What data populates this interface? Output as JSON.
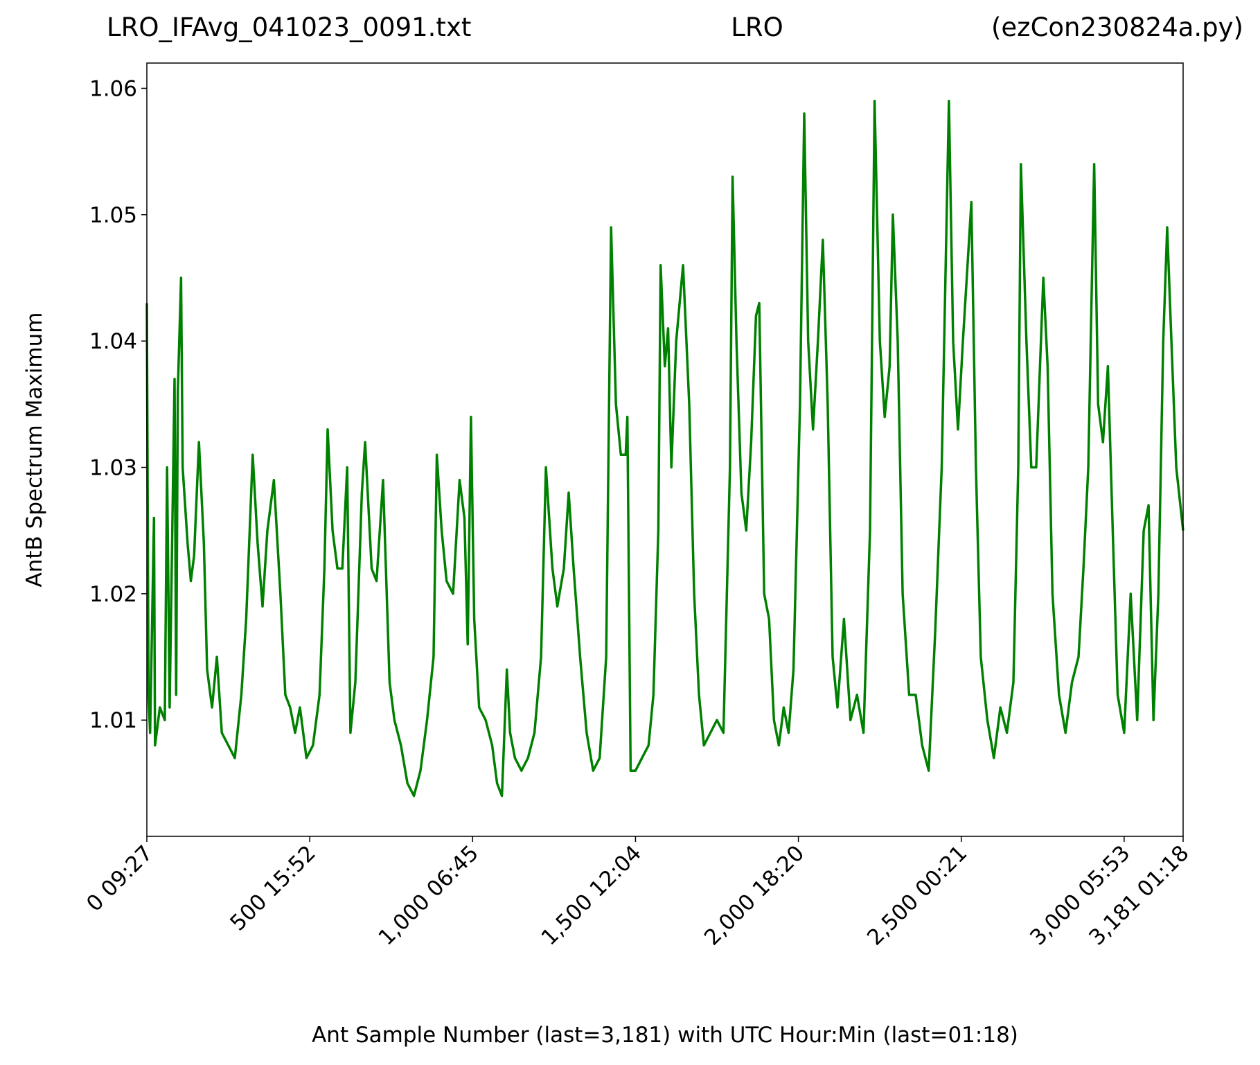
{
  "chart_data": {
    "type": "line",
    "title_left": "LRO_IFAvg_041023_0091.txt",
    "title_center": "LRO",
    "title_right": "(ezCon230824a.py)",
    "xlabel": "Ant Sample Number (last=3,181) with UTC Hour:Min (last=01:18)",
    "ylabel": "AntB Spectrum Maximum",
    "xlim": [
      0,
      3181
    ],
    "ylim": [
      1.0008,
      1.062
    ],
    "xticks": [
      {
        "value": 0,
        "label": "0  09:27"
      },
      {
        "value": 500,
        "label": "500  15:52"
      },
      {
        "value": 1000,
        "label": "1,000  06:45"
      },
      {
        "value": 1500,
        "label": "1,500  12:04"
      },
      {
        "value": 2000,
        "label": "2,000  18:20"
      },
      {
        "value": 2500,
        "label": "2,500  00:21"
      },
      {
        "value": 3000,
        "label": "3,000  05:53"
      },
      {
        "value": 3181,
        "label": "3,181  01:18"
      }
    ],
    "yticks": [
      1.01,
      1.02,
      1.03,
      1.04,
      1.05,
      1.06
    ],
    "series": [
      {
        "name": "AntB",
        "color": "#008000",
        "x": [
          0,
          5,
          10,
          22,
          25,
          40,
          55,
          62,
          70,
          85,
          90,
          95,
          105,
          110,
          125,
          135,
          145,
          160,
          175,
          185,
          200,
          215,
          230,
          250,
          270,
          290,
          305,
          325,
          340,
          355,
          370,
          390,
          410,
          425,
          440,
          455,
          470,
          490,
          510,
          530,
          545,
          555,
          570,
          585,
          600,
          615,
          625,
          640,
          660,
          670,
          690,
          705,
          725,
          745,
          760,
          780,
          800,
          820,
          840,
          860,
          880,
          890,
          905,
          920,
          940,
          960,
          975,
          985,
          995,
          1005,
          1020,
          1040,
          1060,
          1075,
          1090,
          1105,
          1115,
          1130,
          1150,
          1170,
          1190,
          1210,
          1225,
          1245,
          1260,
          1280,
          1295,
          1310,
          1330,
          1350,
          1370,
          1390,
          1410,
          1425,
          1440,
          1455,
          1470,
          1475,
          1485,
          1500,
          1520,
          1540,
          1555,
          1570,
          1577,
          1590,
          1600,
          1610,
          1625,
          1646,
          1665,
          1680,
          1695,
          1710,
          1730,
          1750,
          1770,
          1790,
          1798,
          1810,
          1825,
          1840,
          1855,
          1870,
          1880,
          1895,
          1910,
          1925,
          1940,
          1955,
          1970,
          1985,
          2005,
          2018,
          2030,
          2045,
          2060,
          2075,
          2090,
          2105,
          2120,
          2140,
          2160,
          2180,
          2200,
          2220,
          2234,
          2250,
          2265,
          2280,
          2290,
          2305,
          2320,
          2340,
          2360,
          2380,
          2400,
          2420,
          2440,
          2462,
          2475,
          2490,
          2505,
          2531,
          2545,
          2560,
          2580,
          2600,
          2620,
          2640,
          2660,
          2675,
          2683,
          2700,
          2715,
          2730,
          2752,
          2765,
          2780,
          2800,
          2820,
          2840,
          2860,
          2875,
          2890,
          2908,
          2920,
          2935,
          2950,
          2965,
          2980,
          3000,
          3020,
          3040,
          3060,
          3075,
          3090,
          3105,
          3120,
          3132,
          3145,
          3160,
          3181
        ],
        "values": [
          1.043,
          1.012,
          1.009,
          1.026,
          1.008,
          1.011,
          1.01,
          1.03,
          1.011,
          1.037,
          1.012,
          1.036,
          1.045,
          1.03,
          1.024,
          1.021,
          1.023,
          1.032,
          1.024,
          1.014,
          1.011,
          1.015,
          1.009,
          1.008,
          1.007,
          1.012,
          1.018,
          1.031,
          1.024,
          1.019,
          1.025,
          1.029,
          1.02,
          1.012,
          1.011,
          1.009,
          1.011,
          1.007,
          1.008,
          1.012,
          1.022,
          1.033,
          1.025,
          1.022,
          1.022,
          1.03,
          1.009,
          1.013,
          1.028,
          1.032,
          1.022,
          1.021,
          1.029,
          1.013,
          1.01,
          1.008,
          1.005,
          1.004,
          1.006,
          1.01,
          1.015,
          1.031,
          1.025,
          1.021,
          1.02,
          1.029,
          1.026,
          1.016,
          1.034,
          1.018,
          1.011,
          1.01,
          1.008,
          1.005,
          1.004,
          1.014,
          1.009,
          1.007,
          1.006,
          1.007,
          1.009,
          1.015,
          1.03,
          1.022,
          1.019,
          1.022,
          1.028,
          1.022,
          1.015,
          1.009,
          1.006,
          1.007,
          1.015,
          1.049,
          1.035,
          1.031,
          1.031,
          1.034,
          1.006,
          1.006,
          1.007,
          1.008,
          1.012,
          1.025,
          1.046,
          1.038,
          1.041,
          1.03,
          1.04,
          1.046,
          1.035,
          1.02,
          1.012,
          1.008,
          1.009,
          1.01,
          1.009,
          1.03,
          1.053,
          1.04,
          1.028,
          1.025,
          1.032,
          1.042,
          1.043,
          1.02,
          1.018,
          1.01,
          1.008,
          1.011,
          1.009,
          1.014,
          1.035,
          1.058,
          1.04,
          1.033,
          1.04,
          1.048,
          1.035,
          1.015,
          1.011,
          1.018,
          1.01,
          1.012,
          1.009,
          1.025,
          1.059,
          1.04,
          1.034,
          1.038,
          1.05,
          1.04,
          1.02,
          1.012,
          1.012,
          1.008,
          1.006,
          1.017,
          1.03,
          1.059,
          1.04,
          1.033,
          1.04,
          1.051,
          1.03,
          1.015,
          1.01,
          1.007,
          1.011,
          1.009,
          1.013,
          1.03,
          1.054,
          1.04,
          1.03,
          1.03,
          1.045,
          1.038,
          1.02,
          1.012,
          1.009,
          1.013,
          1.015,
          1.022,
          1.03,
          1.054,
          1.035,
          1.032,
          1.038,
          1.025,
          1.012,
          1.009,
          1.02,
          1.01,
          1.025,
          1.027,
          1.01,
          1.02,
          1.04,
          1.049,
          1.04,
          1.03,
          1.025
        ]
      }
    ]
  }
}
